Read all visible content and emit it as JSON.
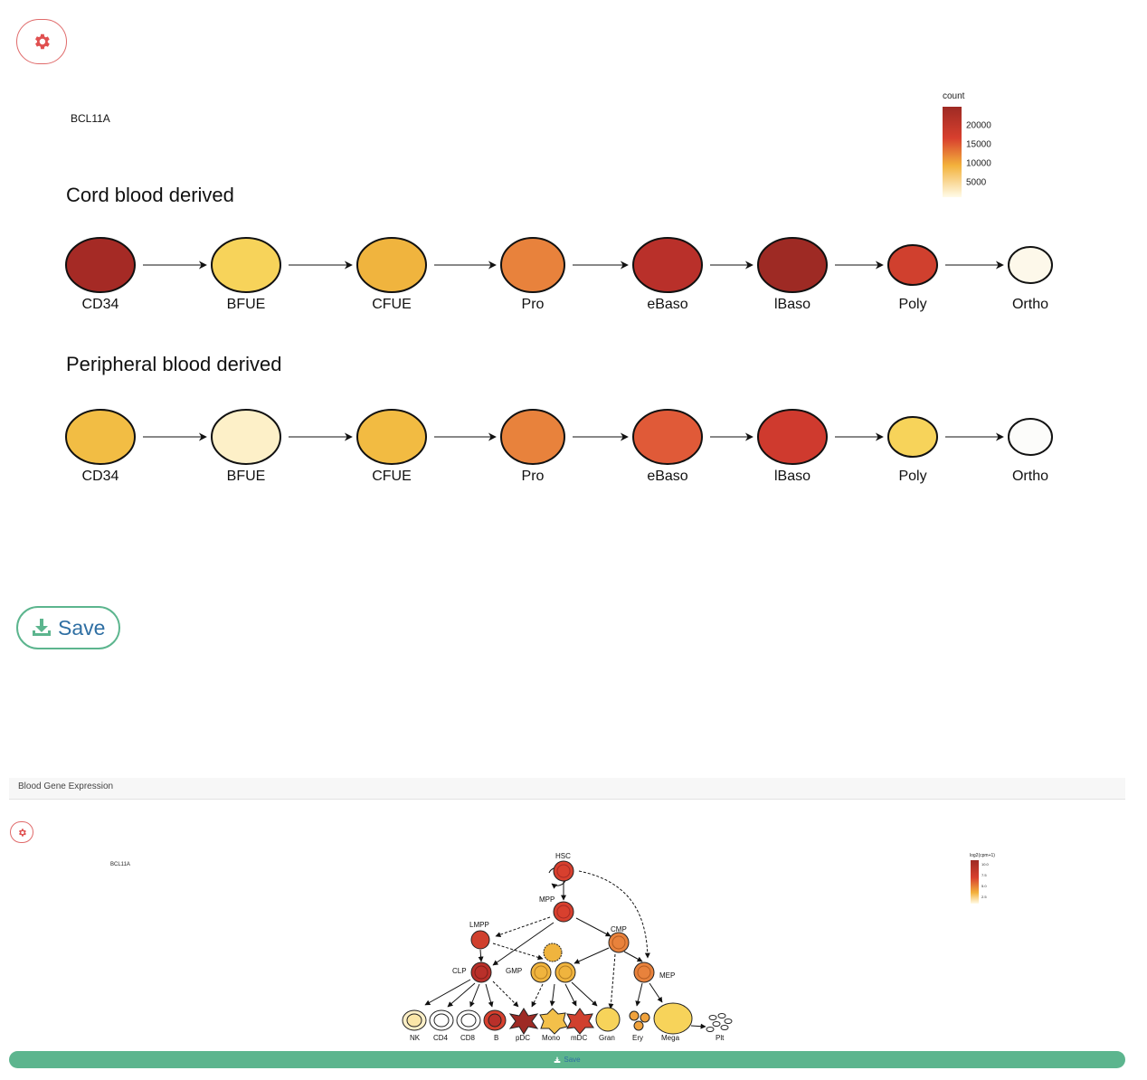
{
  "top_figure": {
    "gene": "BCL11A",
    "legend_title": "count",
    "legend_ticks": [
      "20000",
      "15000",
      "10000",
      "5000"
    ],
    "rows": [
      {
        "title": "Cord blood derived",
        "cells": [
          {
            "label": "CD34",
            "color": "#a52a25"
          },
          {
            "label": "BFUE",
            "color": "#f7d35a"
          },
          {
            "label": "CFUE",
            "color": "#f0b43e"
          },
          {
            "label": "Pro",
            "color": "#e8823c"
          },
          {
            "label": "eBaso",
            "color": "#b9302a"
          },
          {
            "label": "lBaso",
            "color": "#9e2a24"
          },
          {
            "label": "Poly",
            "color": "#d0402e"
          },
          {
            "label": "Ortho",
            "color": "#fdf8ea"
          }
        ]
      },
      {
        "title": "Peripheral blood derived",
        "cells": [
          {
            "label": "CD34",
            "color": "#f2bd44"
          },
          {
            "label": "BFUE",
            "color": "#fdf0c8"
          },
          {
            "label": "CFUE",
            "color": "#f2bb42"
          },
          {
            "label": "Pro",
            "color": "#e8823c"
          },
          {
            "label": "eBaso",
            "color": "#e05a38"
          },
          {
            "label": "lBaso",
            "color": "#cf3a2e"
          },
          {
            "label": "Poly",
            "color": "#f7d35a"
          },
          {
            "label": "Ortho",
            "color": "#fcfcfa"
          }
        ]
      }
    ]
  },
  "save_label": "Save",
  "panel_title": "Blood Gene Expression",
  "bottom_figure": {
    "gene": "BCL11A",
    "legend_title": "log2(cpm+1)",
    "legend_ticks": [
      "10.0",
      "7.5",
      "5.0",
      "2.5"
    ],
    "nodes": {
      "HSC": "HSC",
      "MPP": "MPP",
      "LMPP": "LMPP",
      "CMP": "CMP",
      "CLP": "CLP",
      "GMP": "GMP",
      "MEP": "MEP",
      "NK": "NK",
      "CD4": "CD4",
      "CD8": "CD8",
      "B": "B",
      "pDC": "pDC",
      "Mono": "Mono",
      "mDC": "mDC",
      "Gran": "Gran",
      "Ery": "Ery",
      "Mega": "Mega",
      "Plt": "Plt"
    }
  },
  "bottom_save_label": "Save"
}
